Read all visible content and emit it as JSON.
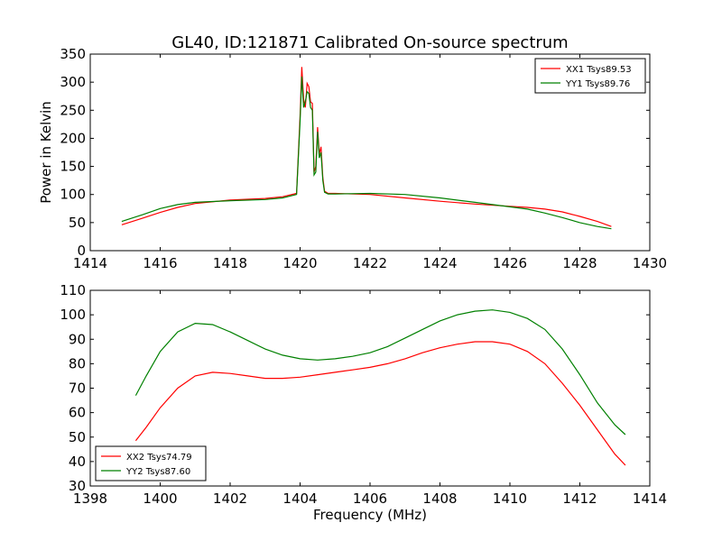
{
  "title": "GL40, ID:121871 Calibrated On-source spectrum",
  "colors": {
    "red": "#ff0000",
    "green": "#008000",
    "axis": "#000000"
  },
  "chart_data": [
    {
      "type": "line",
      "title": "GL40, ID:121871 Calibrated On-source spectrum",
      "xlabel": "",
      "ylabel": "Power in Kelvin",
      "xlim": [
        1414,
        1430
      ],
      "ylim": [
        0,
        350
      ],
      "xticks": [
        "1414",
        "1416",
        "1418",
        "1420",
        "1422",
        "1424",
        "1426",
        "1428",
        "1430"
      ],
      "yticks": [
        "0",
        "50",
        "100",
        "150",
        "200",
        "250",
        "300",
        "350"
      ],
      "grid": false,
      "legend_position": "top-right",
      "series": [
        {
          "name": "XX1 Tsys89.53",
          "color": "#ff0000",
          "x": [
            1414.9,
            1415.5,
            1416,
            1416.5,
            1417,
            1418,
            1419,
            1419.5,
            1419.9,
            1420.0,
            1420.05,
            1420.1,
            1420.15,
            1420.2,
            1420.25,
            1420.3,
            1420.35,
            1420.4,
            1420.45,
            1420.5,
            1420.55,
            1420.6,
            1420.65,
            1420.7,
            1420.8,
            1421,
            1422,
            1423,
            1424,
            1425,
            1426,
            1426.5,
            1427,
            1427.5,
            1428,
            1428.5,
            1428.9
          ],
          "y": [
            46,
            58,
            68,
            77,
            84,
            90,
            93,
            96,
            102,
            240,
            327,
            270,
            255,
            298,
            292,
            265,
            262,
            140,
            150,
            220,
            172,
            185,
            130,
            106,
            102,
            102,
            100,
            94,
            88,
            83,
            79,
            77,
            74,
            69,
            61,
            52,
            43
          ]
        },
        {
          "name": "YY1 Tsys89.76",
          "color": "#008000",
          "x": [
            1414.9,
            1415.5,
            1416,
            1416.5,
            1417,
            1418,
            1419,
            1419.5,
            1419.9,
            1420.0,
            1420.05,
            1420.1,
            1420.15,
            1420.2,
            1420.25,
            1420.3,
            1420.35,
            1420.4,
            1420.45,
            1420.5,
            1420.55,
            1420.6,
            1420.65,
            1420.7,
            1420.8,
            1421,
            1422,
            1423,
            1424,
            1425,
            1426,
            1426.5,
            1427,
            1427.5,
            1428,
            1428.5,
            1428.9
          ],
          "y": [
            52,
            64,
            75,
            82,
            86,
            89,
            91,
            94,
            100,
            230,
            310,
            255,
            265,
            283,
            280,
            255,
            250,
            135,
            140,
            212,
            165,
            175,
            125,
            104,
            101,
            101,
            102,
            100,
            94,
            86,
            78,
            74,
            67,
            59,
            50,
            43,
            39
          ]
        }
      ]
    },
    {
      "type": "line",
      "title": "",
      "xlabel": "Frequency (MHz)",
      "ylabel": "",
      "xlim": [
        1398,
        1414
      ],
      "ylim": [
        30,
        110
      ],
      "xticks": [
        "1398",
        "1400",
        "1402",
        "1404",
        "1406",
        "1408",
        "1410",
        "1412",
        "1414"
      ],
      "yticks": [
        "30",
        "40",
        "50",
        "60",
        "70",
        "80",
        "90",
        "100",
        "110"
      ],
      "grid": false,
      "legend_position": "bottom-left",
      "series": [
        {
          "name": "XX2 Tsys74.79",
          "color": "#ff0000",
          "x": [
            1399.3,
            1399.6,
            1400,
            1400.5,
            1401,
            1401.5,
            1402,
            1402.5,
            1403,
            1403.5,
            1404,
            1404.5,
            1405,
            1405.5,
            1406,
            1406.5,
            1407,
            1407.5,
            1408,
            1408.5,
            1409,
            1409.5,
            1410,
            1410.5,
            1411,
            1411.5,
            1412,
            1412.5,
            1413,
            1413.3
          ],
          "y": [
            48.5,
            54,
            62,
            70,
            75,
            76.5,
            76,
            75,
            74,
            74,
            74.5,
            75.5,
            76.5,
            77.5,
            78.5,
            80,
            82,
            84.5,
            86.5,
            88,
            89,
            89,
            88,
            85,
            80,
            72,
            63,
            53,
            43,
            38.5
          ]
        },
        {
          "name": "YY2 Tsys87.60",
          "color": "#008000",
          "x": [
            1399.3,
            1399.6,
            1400,
            1400.5,
            1401,
            1401.5,
            1402,
            1402.5,
            1403,
            1403.5,
            1404,
            1404.5,
            1405,
            1405.5,
            1406,
            1406.5,
            1407,
            1407.5,
            1408,
            1408.5,
            1409,
            1409.5,
            1410,
            1410.5,
            1411,
            1411.5,
            1412,
            1412.5,
            1413,
            1413.3
          ],
          "y": [
            67,
            75,
            85,
            93,
            96.5,
            96,
            93,
            89.5,
            86,
            83.5,
            82,
            81.5,
            82,
            83,
            84.5,
            87,
            90.5,
            94,
            97.5,
            100,
            101.5,
            102,
            101,
            98.5,
            94,
            86,
            75.5,
            64,
            55,
            51
          ]
        }
      ]
    }
  ]
}
